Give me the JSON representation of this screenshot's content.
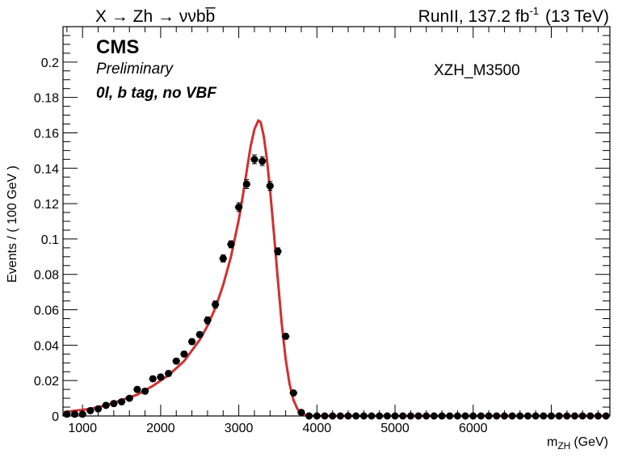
{
  "chart_data": {
    "type": "scatter",
    "title_left": "X → Zh → ννbb̅",
    "title_right_prefix": "RunII, 137.2 fb",
    "title_right_sup": "-1",
    "title_right_suffix": "(13 TeV)",
    "experiment": "CMS",
    "status": "Preliminary",
    "category": "0l, b tag, no VBF",
    "sample_label": "XZH_M3500",
    "xlabel_main": "m",
    "xlabel_sub": "ZH",
    "xlabel_unit": "(GeV)",
    "ylabel": "Events / ( 100 GeV )",
    "xlim": [
      750,
      7750
    ],
    "ylim": [
      0,
      0.22
    ],
    "x_ticks": [
      1000,
      2000,
      3000,
      4000,
      5000,
      6000
    ],
    "y_ticks": [
      0,
      0.02,
      0.04,
      0.06,
      0.08,
      0.1,
      0.12,
      0.14,
      0.16,
      0.18,
      0.2
    ],
    "y_tick_labels": [
      "0",
      "0.02",
      "0.04",
      "0.06",
      "0.08",
      "0.1",
      "0.12",
      "0.14",
      "0.16",
      "0.18",
      "0.2"
    ],
    "grid": false,
    "colors": {
      "points": "#000000",
      "fit": "#d03030"
    },
    "series": [
      {
        "kind": "points",
        "x": [
          800,
          900,
          1000,
          1100,
          1200,
          1300,
          1400,
          1500,
          1600,
          1700,
          1800,
          1900,
          2000,
          2100,
          2200,
          2300,
          2400,
          2500,
          2600,
          2700,
          2800,
          2900,
          3000,
          3100,
          3200,
          3300,
          3400,
          3500,
          3600,
          3700,
          3800,
          3900,
          4000,
          4100,
          4200,
          4300,
          4400,
          4500,
          4600,
          4700,
          4800,
          4900,
          5000,
          5100,
          5200,
          5300,
          5400,
          5500,
          5600,
          5700,
          5800,
          5900,
          6000,
          6100,
          6200,
          6300,
          6400,
          6500,
          6600,
          6700,
          6800,
          6900,
          7000,
          7100,
          7200,
          7300,
          7400,
          7500,
          7600,
          7700
        ],
        "y": [
          0.001,
          0.001,
          0.001,
          0.003,
          0.004,
          0.006,
          0.007,
          0.008,
          0.01,
          0.015,
          0.014,
          0.021,
          0.022,
          0.024,
          0.031,
          0.035,
          0.042,
          0.046,
          0.054,
          0.063,
          0.089,
          0.097,
          0.118,
          0.131,
          0.145,
          0.144,
          0.13,
          0.093,
          0.045,
          0.013,
          0.002,
          0.0,
          0,
          0,
          0,
          0,
          0,
          0,
          0,
          0,
          0,
          0,
          0,
          0,
          0,
          0,
          0,
          0,
          0,
          0,
          0,
          0,
          0,
          0,
          0,
          0,
          0,
          0,
          0,
          0,
          0,
          0,
          0,
          0,
          0,
          0,
          0,
          0,
          0,
          0
        ],
        "yerr": [
          0.001,
          0.001,
          0.001,
          0.001,
          0.001,
          0.001,
          0.001,
          0.001,
          0.001,
          0.0015,
          0.0015,
          0.0015,
          0.0015,
          0.0015,
          0.0015,
          0.0015,
          0.0015,
          0.0015,
          0.002,
          0.002,
          0.002,
          0.002,
          0.0025,
          0.0025,
          0.0025,
          0.0025,
          0.0025,
          0.002,
          0.0015,
          0.001,
          0.0005,
          0,
          0,
          0,
          0,
          0,
          0,
          0,
          0,
          0,
          0,
          0,
          0,
          0,
          0,
          0,
          0,
          0,
          0,
          0,
          0,
          0,
          0,
          0,
          0,
          0,
          0,
          0,
          0,
          0,
          0,
          0,
          0,
          0,
          0,
          0,
          0,
          0,
          0,
          0
        ],
        "xerr": 50
      },
      {
        "kind": "fit",
        "x": [
          750,
          900,
          1100,
          1300,
          1500,
          1700,
          1900,
          2100,
          2300,
          2500,
          2600,
          2700,
          2800,
          2900,
          3000,
          3050,
          3100,
          3150,
          3200,
          3250,
          3280,
          3320,
          3360,
          3400,
          3450,
          3500,
          3550,
          3600,
          3650,
          3700,
          3750,
          3800,
          3850,
          3900,
          3950,
          4000,
          4200,
          4500,
          5000,
          6000,
          7000,
          7750
        ],
        "y": [
          0.002,
          0.003,
          0.004,
          0.006,
          0.009,
          0.012,
          0.017,
          0.023,
          0.031,
          0.043,
          0.051,
          0.061,
          0.074,
          0.09,
          0.111,
          0.124,
          0.138,
          0.152,
          0.162,
          0.167,
          0.166,
          0.158,
          0.145,
          0.128,
          0.103,
          0.077,
          0.052,
          0.032,
          0.018,
          0.009,
          0.004,
          0.0015,
          0.0006,
          0.0002,
          5e-05,
          0,
          0,
          0,
          0,
          0,
          0,
          0
        ]
      }
    ]
  }
}
